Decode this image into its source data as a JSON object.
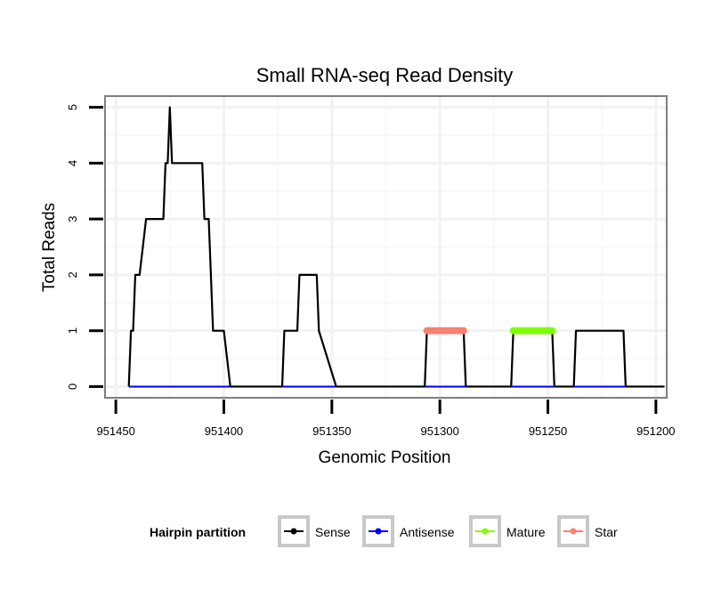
{
  "chart_data": {
    "type": "line",
    "title": "Small RNA-seq Read Density",
    "xlabel": "Genomic Position",
    "ylabel": "Total Reads",
    "xlim": [
      951455,
      951195
    ],
    "x_reversed": true,
    "ylim": [
      -0.2,
      5.2
    ],
    "x_ticks": [
      951450,
      951400,
      951350,
      951300,
      951250,
      951200
    ],
    "x_tick_labels": [
      "951450",
      "951400",
      "951350",
      "951300",
      "951250",
      "951200"
    ],
    "y_ticks": [
      0,
      1,
      2,
      3,
      4,
      5
    ],
    "y_tick_labels": [
      "0",
      "1",
      "2",
      "3",
      "4",
      "5"
    ],
    "grid": true,
    "legend": {
      "title": "Hairpin partition",
      "position": "bottom",
      "entries": [
        {
          "label": "Sense",
          "color": "#000000"
        },
        {
          "label": "Antisense",
          "color": "#0000ff"
        },
        {
          "label": "Mature",
          "color": "#7fff00"
        },
        {
          "label": "Star",
          "color": "#fa8072"
        }
      ]
    },
    "series": [
      {
        "name": "Sense",
        "color": "#000000",
        "x": [
          951444,
          951443,
          951442,
          951441,
          951439,
          951436,
          951434,
          951428,
          951427,
          951426,
          951425,
          951424,
          951423,
          951419,
          951410,
          951409,
          951408,
          951407,
          951405,
          951404,
          951400,
          951397,
          951373,
          951372,
          951366,
          951365,
          951360,
          951357,
          951356,
          951348,
          951307,
          951306,
          951289,
          951288,
          951267,
          951266,
          951248,
          951247,
          951238,
          951237,
          951215,
          951214,
          951196
        ],
        "values": [
          0,
          1,
          1,
          2,
          2,
          3,
          3,
          3,
          4,
          4,
          5,
          4,
          4,
          4,
          4,
          3,
          3,
          3,
          1,
          1,
          1,
          0,
          0,
          1,
          1,
          2,
          2,
          2,
          1,
          0,
          0,
          1,
          1,
          0,
          0,
          1,
          1,
          0,
          0,
          1,
          1,
          0,
          0
        ]
      },
      {
        "name": "Antisense",
        "color": "#0000ff",
        "x": [
          951444,
          951397,
          951373,
          951348,
          951307,
          951288,
          951267,
          951247,
          951238,
          951214
        ],
        "values": [
          0,
          0,
          0,
          0,
          0,
          0,
          0,
          0,
          0,
          0
        ],
        "segments": [
          [
            0,
            1
          ],
          [
            2,
            3
          ],
          [
            4,
            5
          ],
          [
            6,
            7
          ],
          [
            8,
            9
          ]
        ]
      },
      {
        "name": "Mature",
        "color": "#7fff00",
        "x": [
          951266,
          951265,
          951264,
          951263,
          951262,
          951261,
          951260,
          951259,
          951258,
          951257,
          951256,
          951255,
          951254,
          951253,
          951252,
          951251,
          951250,
          951249,
          951248
        ],
        "values": [
          1,
          1,
          1,
          1,
          1,
          1,
          1,
          1,
          1,
          1,
          1,
          1,
          1,
          1,
          1,
          1,
          1,
          1,
          1
        ]
      },
      {
        "name": "Star",
        "color": "#fa8072",
        "x": [
          951306,
          951305,
          951304,
          951303,
          951302,
          951301,
          951300,
          951299,
          951298,
          951297,
          951296,
          951295,
          951294,
          951293,
          951292,
          951291,
          951290,
          951289
        ],
        "values": [
          1,
          1,
          1,
          1,
          1,
          1,
          1,
          1,
          1,
          1,
          1,
          1,
          1,
          1,
          1,
          1,
          1,
          1
        ]
      }
    ]
  }
}
